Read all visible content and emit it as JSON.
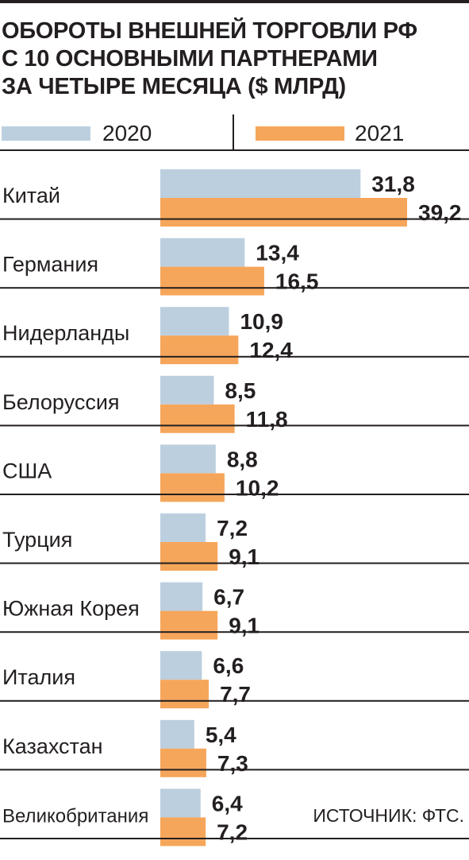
{
  "title": {
    "line1": "ОБОРОТЫ ВНЕШНЕЙ ТОРГОВЛИ РФ",
    "line2": "С 10 ОСНОВНЫМИ ПАРТНЕРАМИ",
    "line3": "ЗА ЧЕТЫРЕ МЕСЯЦА ($ МЛРД)"
  },
  "legend": [
    {
      "label": "2020",
      "color": "#bccfdf"
    },
    {
      "label": "2021",
      "color": "#f6a65a"
    }
  ],
  "source": "ИСТОЧНИК: ФТС.",
  "chart_data": {
    "type": "bar",
    "orientation": "horizontal",
    "title": "ОБОРОТЫ ВНЕШНЕЙ ТОРГОВЛИ РФ С 10 ОСНОВНЫМИ ПАРТНЕРАМИ ЗА ЧЕТЫРЕ МЕСЯЦА ($ МЛРД)",
    "categories": [
      "Китай",
      "Германия",
      "Нидерланды",
      "Белоруссия",
      "США",
      "Турция",
      "Южная Корея",
      "Италия",
      "Казахстан",
      "Великобритания"
    ],
    "category_labels": [
      "Китай",
      "Германия",
      "Нидерланды",
      "Белоруссия",
      "США",
      "Турция",
      "Южная Корея",
      "Италия",
      "Казахстан",
      "Великобритания"
    ],
    "series": [
      {
        "name": "2020",
        "color": "#bccfdf",
        "values": [
          31.8,
          13.4,
          10.9,
          8.5,
          8.8,
          7.2,
          6.7,
          6.6,
          5.4,
          6.4
        ],
        "labels": [
          "31,8",
          "13,4",
          "10,9",
          "8,5",
          "8,8",
          "7,2",
          "6,7",
          "6,6",
          "5,4",
          "6,4"
        ]
      },
      {
        "name": "2021",
        "color": "#f6a65a",
        "values": [
          39.2,
          16.5,
          12.4,
          11.8,
          10.2,
          9.1,
          9.1,
          7.7,
          7.3,
          7.2
        ],
        "labels": [
          "39,2",
          "16,5",
          "12,4",
          "11,8",
          "10,2",
          "9,1",
          "9,1",
          "7,7",
          "7,3",
          "7,2"
        ]
      }
    ],
    "xlabel": "",
    "ylabel": "",
    "grid": false,
    "legend_position": "top"
  }
}
